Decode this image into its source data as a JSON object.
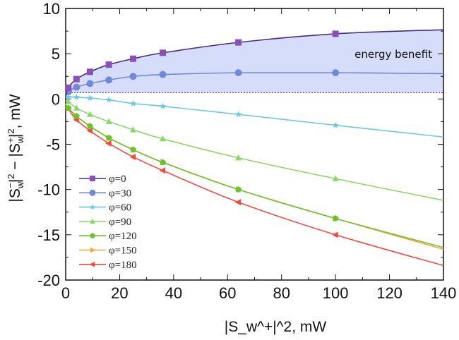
{
  "chart_data": {
    "type": "line",
    "xlabel": "|S_w^+|^2, mW",
    "ylabel": "|S_w^-|^2 - |S_w^+|^2, mW",
    "xlim": [
      0,
      140
    ],
    "ylim": [
      -20,
      10
    ],
    "xticks": [
      0,
      20,
      40,
      60,
      80,
      100,
      120,
      140
    ],
    "yticks": [
      10,
      5,
      0,
      -5,
      -10,
      -15,
      -20
    ],
    "grid": false,
    "legend_position": "bottom-left",
    "annotation": "energy benefit",
    "reference_line_y": 0.7,
    "shaded_region": {
      "label": "energy benefit",
      "color": "#d6ddfb",
      "between": [
        "φ=0",
        "reference_line_y"
      ]
    },
    "x": [
      0,
      1,
      4,
      9,
      16,
      25,
      36,
      64,
      100,
      140
    ],
    "series": [
      {
        "name": "φ=0",
        "marker": "square",
        "color": "#8b4fb5",
        "line_color": "#4a2b7a",
        "values": [
          0.3,
          1.25,
          2.2,
          3.0,
          3.8,
          4.45,
          5.1,
          6.25,
          7.2,
          7.65
        ]
      },
      {
        "name": "φ=30",
        "marker": "circle",
        "color": "#7088d6",
        "line_color": "#7088d6",
        "values": [
          0.3,
          0.8,
          1.3,
          1.7,
          2.1,
          2.5,
          2.7,
          2.9,
          2.9,
          2.8
        ]
      },
      {
        "name": "φ=60",
        "marker": "star",
        "color": "#6cc8e0",
        "line_color": "#6cc8e0",
        "values": [
          0.2,
          0.2,
          0.2,
          0.1,
          -0.1,
          -0.5,
          -0.8,
          -1.7,
          -2.9,
          -4.2
        ]
      },
      {
        "name": "φ=90",
        "marker": "triangle-up",
        "color": "#8fd66a",
        "line_color": "#8fd66a",
        "values": [
          -0.2,
          -0.3,
          -1.0,
          -1.7,
          -2.5,
          -3.4,
          -4.4,
          -6.5,
          -8.8,
          -11.2
        ]
      },
      {
        "name": "φ=120",
        "marker": "pentagon",
        "color": "#6cc22e",
        "line_color": "#6cc22e",
        "values": [
          -0.6,
          -1.0,
          -1.9,
          -3.0,
          -4.3,
          -5.6,
          -7.0,
          -10.0,
          -13.2,
          -16.4
        ]
      },
      {
        "name": "φ=150",
        "marker": "triangle-right",
        "color": "#f2a93b",
        "line_color": "#f2a93b",
        "values": [
          -0.6,
          -1.0,
          -1.9,
          -3.0,
          -4.3,
          -5.6,
          -7.0,
          -10.0,
          -13.2,
          -16.6
        ]
      },
      {
        "name": "φ=180",
        "marker": "triangle-left",
        "color": "#f24a3e",
        "line_color": "#f24a3e",
        "values": [
          -0.7,
          -1.1,
          -2.3,
          -3.5,
          -4.9,
          -6.4,
          -7.9,
          -11.4,
          -15.0,
          -18.4
        ]
      }
    ]
  }
}
